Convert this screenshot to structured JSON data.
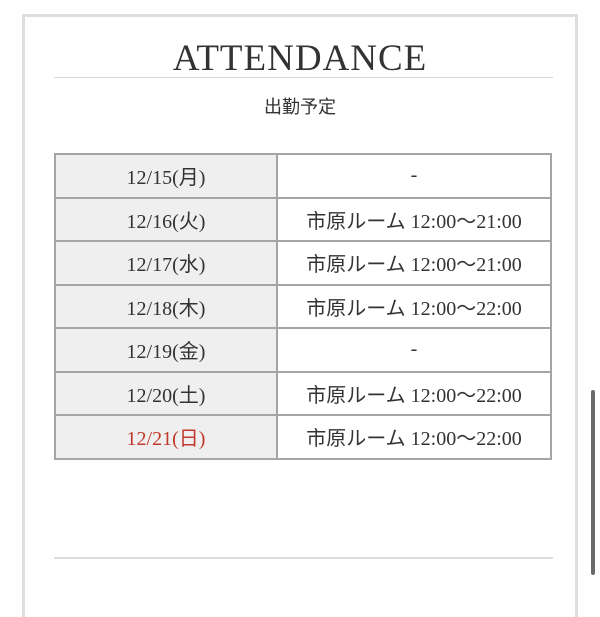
{
  "header": {
    "title": "ATTENDANCE",
    "subtitle": "出勤予定"
  },
  "schedule": [
    {
      "date": "12/15(月)",
      "shift": "-"
    },
    {
      "date": "12/16(火)",
      "shift": "市原ルーム 12:00〜21:00"
    },
    {
      "date": "12/17(水)",
      "shift": "市原ルーム 12:00〜21:00"
    },
    {
      "date": "12/18(木)",
      "shift": "市原ルーム 12:00〜22:00"
    },
    {
      "date": "12/19(金)",
      "shift": "-"
    },
    {
      "date": "12/20(土)",
      "shift": "市原ルーム 12:00〜22:00"
    },
    {
      "date": "12/21(日)",
      "shift": "市原ルーム 12:00〜22:00",
      "highlight_color": "#c0392b"
    }
  ]
}
